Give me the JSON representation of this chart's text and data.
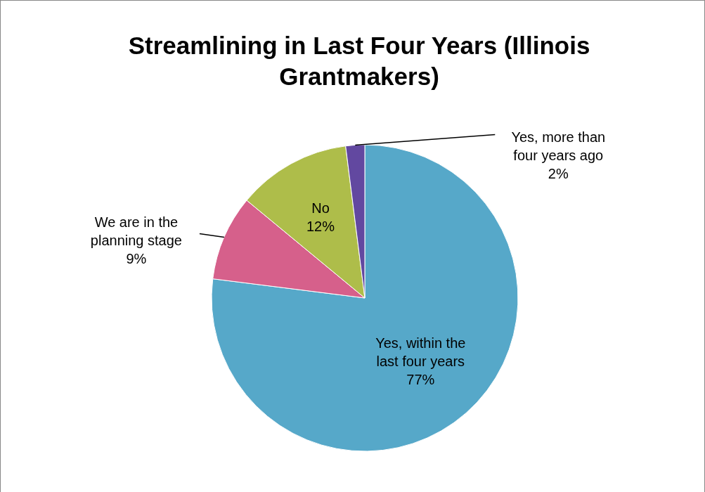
{
  "chart_data": {
    "type": "pie",
    "title": "Streamlining in Last Four Years (Illinois Grantmakers)",
    "categories": [
      "Yes, within the last four years",
      "We are in the planning stage",
      "No",
      "Yes, more than four years ago"
    ],
    "values": [
      77,
      9,
      12,
      2
    ],
    "value_labels": [
      "77%",
      "9%",
      "12%",
      "2%"
    ],
    "colors": [
      "#56a8c9",
      "#d6608b",
      "#aebd4a",
      "#6248a0"
    ],
    "legend": false
  }
}
